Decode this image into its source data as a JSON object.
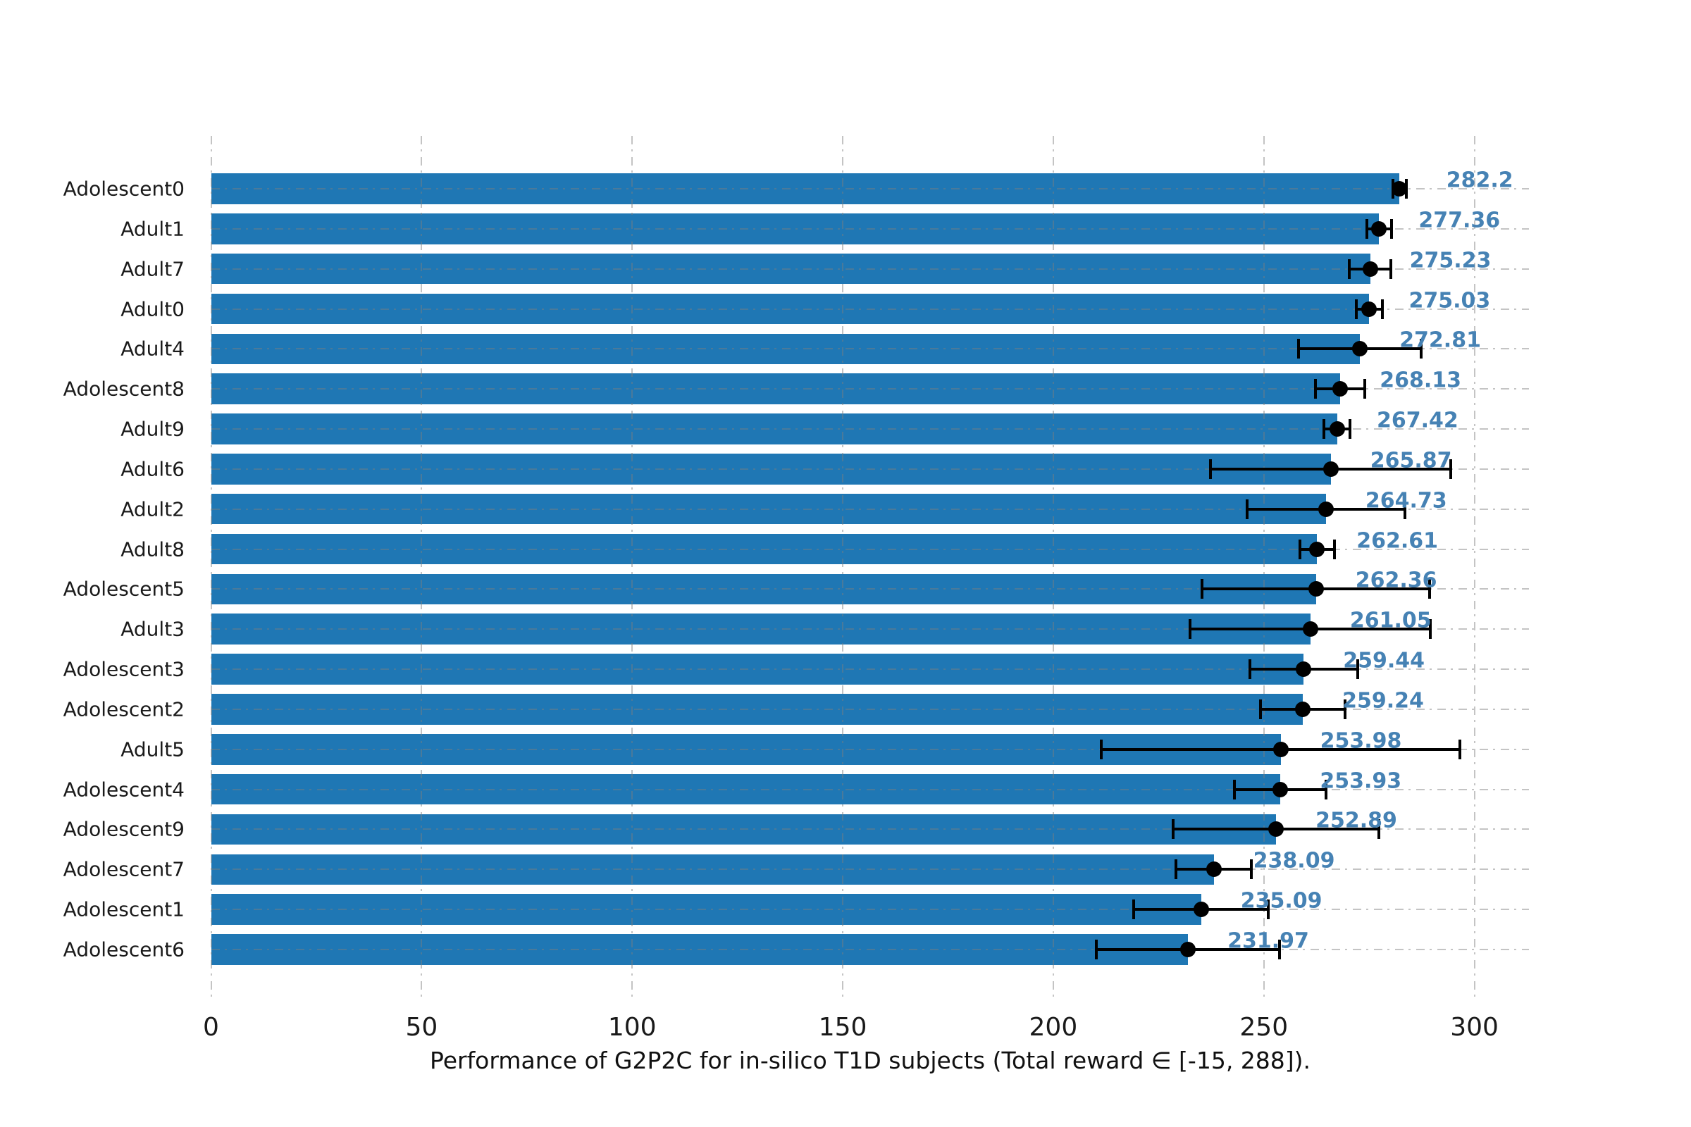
{
  "title": "Performance of G2P2C for in-silico T1D subjects (Total reward ∈ [-15, 288]).",
  "colors": {
    "bar": "#1f77b4",
    "value_label": "#4682b4",
    "error_bar": "#000000",
    "grid": "rgba(125,125,125,0.45)",
    "text": "#1a1a1a",
    "background": "#ffffff"
  },
  "chart_data": {
    "type": "bar",
    "orientation": "horizontal",
    "title": "Performance of G2P2C for in-silico T1D subjects (Total reward ∈ [-15, 288]).",
    "xlabel": "Performance of G2P2C for in-silico T1D subjects (Total reward ∈ [-15, 288]).",
    "ylabel": "",
    "xlim": [
      0,
      313
    ],
    "xticks": [
      0,
      50,
      100,
      150,
      200,
      250,
      300
    ],
    "xtick_labels": [
      "0",
      "50",
      "100",
      "150",
      "200",
      "250",
      "300"
    ],
    "grid": "dash-dot, both axes, drawn over bars",
    "legend": "none",
    "bar_color": "#1f77b4",
    "error_bar_color": "#000000",
    "categories": [
      "Adolescent0",
      "Adult1",
      "Adult7",
      "Adult0",
      "Adult4",
      "Adolescent8",
      "Adult9",
      "Adult6",
      "Adult2",
      "Adult8",
      "Adolescent5",
      "Adult3",
      "Adolescent3",
      "Adolescent2",
      "Adult5",
      "Adolescent4",
      "Adolescent9",
      "Adolescent7",
      "Adolescent1",
      "Adolescent6"
    ],
    "values": [
      282.2,
      277.36,
      275.23,
      275.03,
      272.81,
      268.13,
      267.42,
      265.87,
      264.73,
      262.61,
      262.36,
      261.05,
      259.44,
      259.24,
      253.98,
      253.93,
      252.89,
      238.09,
      235.09,
      231.97
    ],
    "value_labels": [
      "282.2",
      "277.36",
      "275.23",
      "275.03",
      "272.81",
      "268.13",
      "267.42",
      "265.87",
      "264.73",
      "262.61",
      "262.36",
      "261.05",
      "259.44",
      "259.24",
      "253.98",
      "253.93",
      "252.89",
      "238.09",
      "235.09",
      "231.97"
    ],
    "errors_plus_minus": [
      1.6,
      2.9,
      5.0,
      3.1,
      14.5,
      5.9,
      3.1,
      28.5,
      18.7,
      4.1,
      27.0,
      28.5,
      12.8,
      10.0,
      42.6,
      10.9,
      24.5,
      9.0,
      16.0,
      21.8
    ]
  }
}
